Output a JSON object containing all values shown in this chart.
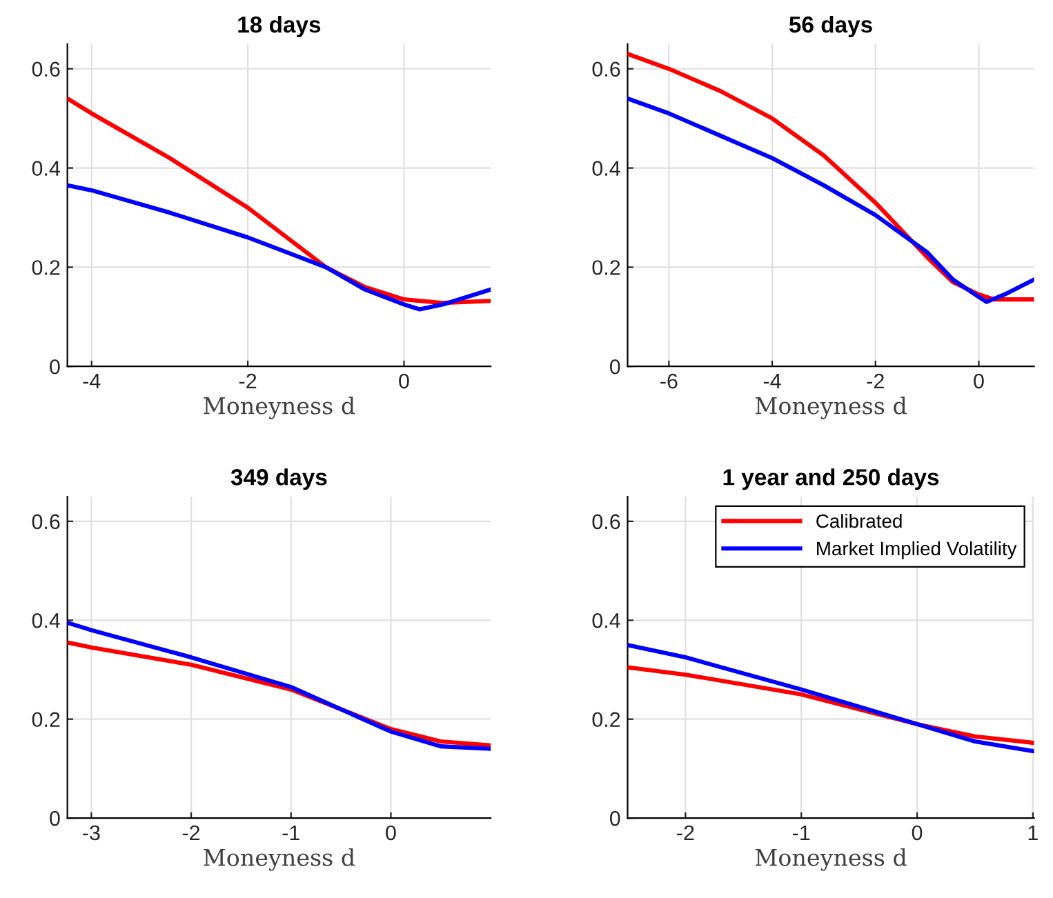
{
  "chart_data": [
    {
      "type": "line",
      "title": "18 days",
      "xlabel": "Moneyness d",
      "xlim": [
        -4.31,
        1.11
      ],
      "xticks": [
        -4,
        -2,
        0
      ],
      "ylim": [
        0,
        0.65
      ],
      "yticks": [
        0,
        0.2,
        0.4,
        0.6
      ],
      "grid": true,
      "line_style": "solid",
      "series": [
        {
          "color": "#ff0000",
          "x": [
            -4.31,
            -4,
            -3,
            -2,
            -1,
            -0.5,
            0,
            0.5,
            1.11
          ],
          "values": [
            0.54,
            0.51,
            0.42,
            0.32,
            0.2,
            0.16,
            0.135,
            0.128,
            0.132
          ]
        },
        {
          "color": "#0000ff",
          "x": [
            -4.31,
            -4,
            -3,
            -2,
            -1,
            -0.5,
            0,
            0.2,
            0.5,
            1.11
          ],
          "values": [
            0.365,
            0.355,
            0.31,
            0.26,
            0.2,
            0.155,
            0.125,
            0.115,
            0.125,
            0.155
          ]
        }
      ]
    },
    {
      "type": "line",
      "title": "56 days",
      "xlabel": "Moneyness d",
      "xlim": [
        -6.8,
        1.07
      ],
      "xticks": [
        -6,
        -4,
        -2,
        0
      ],
      "ylim": [
        0,
        0.65
      ],
      "yticks": [
        0,
        0.2,
        0.4,
        0.6
      ],
      "grid": true,
      "line_style": "solid",
      "series": [
        {
          "color": "#ff0000",
          "x": [
            -6.8,
            -6,
            -5,
            -4,
            -3,
            -2,
            -1,
            -0.5,
            0,
            0.3,
            1.07
          ],
          "values": [
            0.63,
            0.6,
            0.555,
            0.5,
            0.425,
            0.33,
            0.22,
            0.17,
            0.145,
            0.135,
            0.135
          ]
        },
        {
          "color": "#0000ff",
          "x": [
            -6.8,
            -6,
            -5,
            -4,
            -3,
            -2,
            -1,
            -0.5,
            0,
            0.15,
            0.5,
            1.07
          ],
          "values": [
            0.54,
            0.51,
            0.465,
            0.42,
            0.365,
            0.305,
            0.23,
            0.175,
            0.14,
            0.13,
            0.145,
            0.175
          ]
        }
      ]
    },
    {
      "type": "line",
      "title": "349 days",
      "xlabel": "Moneyness d",
      "xlim": [
        -3.24,
        1.0
      ],
      "xticks": [
        -3,
        -2,
        -1,
        0
      ],
      "ylim": [
        0,
        0.65
      ],
      "yticks": [
        0,
        0.2,
        0.4,
        0.6
      ],
      "grid": true,
      "line_style": "solid",
      "series": [
        {
          "color": "#ff0000",
          "x": [
            -3.24,
            -3,
            -2,
            -1,
            0,
            0.5,
            1.0
          ],
          "values": [
            0.355,
            0.345,
            0.31,
            0.26,
            0.18,
            0.155,
            0.147
          ]
        },
        {
          "color": "#0000ff",
          "x": [
            -3.24,
            -3,
            -2,
            -1,
            0,
            0.5,
            1.0
          ],
          "values": [
            0.395,
            0.38,
            0.325,
            0.265,
            0.175,
            0.145,
            0.14
          ]
        }
      ]
    },
    {
      "type": "line",
      "title": "1 year and 250 days",
      "xlabel": "Moneyness d",
      "xlim": [
        -2.5,
        1.01
      ],
      "xticks": [
        -2,
        -1,
        0,
        1
      ],
      "ylim": [
        0,
        0.65
      ],
      "yticks": [
        0,
        0.2,
        0.4,
        0.6
      ],
      "grid": true,
      "line_style": "solid",
      "legend": "top right",
      "series": [
        {
          "name": "Calibrated",
          "color": "#ff0000",
          "x": [
            -2.5,
            -2,
            -1,
            0,
            0.5,
            1.01
          ],
          "values": [
            0.305,
            0.29,
            0.25,
            0.19,
            0.165,
            0.152
          ]
        },
        {
          "name": "Market Implied Volatility",
          "color": "#0000ff",
          "x": [
            -2.5,
            -2,
            -1,
            0,
            0.5,
            1.01
          ],
          "values": [
            0.35,
            0.325,
            0.26,
            0.19,
            0.155,
            0.135
          ]
        }
      ]
    }
  ]
}
